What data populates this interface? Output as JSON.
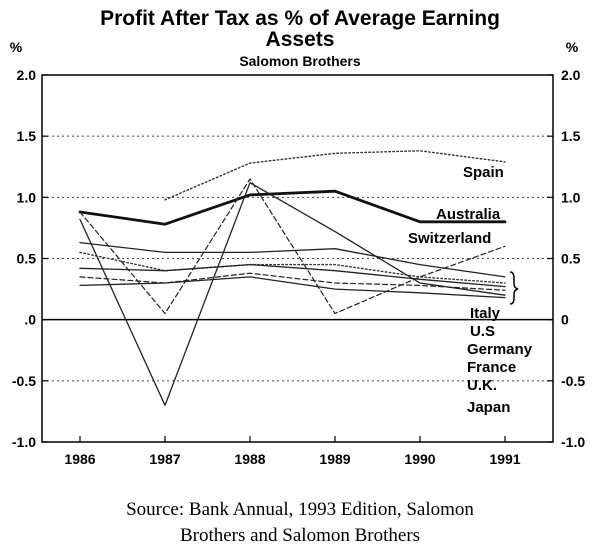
{
  "chart_data": {
    "type": "line",
    "title": "Profit After Tax as % of Average Earning Assets",
    "subtitle": "Salomon Brothers",
    "ylabel_left": "%",
    "ylabel_right": "%",
    "xlabel": "",
    "x": [
      "1986",
      "1987",
      "1988",
      "1989",
      "1990",
      "1991"
    ],
    "ylim": [
      -1.0,
      2.0
    ],
    "yticks": [
      {
        "value": 2.0,
        "label": "2.0"
      },
      {
        "value": 1.5,
        "label": "1.5"
      },
      {
        "value": 1.0,
        "label": "1.0"
      },
      {
        "value": 0.5,
        "label": "0.5"
      },
      {
        "value": 0.0,
        "label": ".0"
      },
      {
        "value": -0.5,
        "label": "-0.5"
      },
      {
        "value": -1.0,
        "label": "-1.0"
      }
    ],
    "yticks_right": [
      {
        "value": 2.0,
        "label": "2.0"
      },
      {
        "value": 1.5,
        "label": "1.5"
      },
      {
        "value": 1.0,
        "label": "1.0"
      },
      {
        "value": 0.5,
        "label": "0.5"
      },
      {
        "value": 0.0,
        "label": "0"
      },
      {
        "value": -0.5,
        "label": "-0.5"
      },
      {
        "value": -1.0,
        "label": "-1.0"
      }
    ],
    "grid": "dotted horizontal",
    "series": [
      {
        "name": "Spain",
        "style": "dotted",
        "values": [
          null,
          0.98,
          1.28,
          1.36,
          1.38,
          1.29
        ]
      },
      {
        "name": "Australia",
        "style": "solid-bold",
        "values": [
          0.88,
          0.78,
          1.02,
          1.05,
          0.8,
          0.8
        ]
      },
      {
        "name": "Switzerland",
        "style": "dashed",
        "values": [
          0.88,
          0.05,
          1.15,
          0.05,
          0.35,
          0.6
        ]
      },
      {
        "name": "Italy",
        "style": "solid",
        "values": [
          0.82,
          -0.7,
          1.12,
          0.72,
          0.3,
          0.2
        ]
      },
      {
        "name": "U.S",
        "style": "solid",
        "values": [
          0.63,
          0.55,
          0.55,
          0.58,
          0.45,
          0.35
        ]
      },
      {
        "name": "Germany",
        "style": "dotted",
        "values": [
          0.55,
          0.4,
          0.45,
          0.45,
          0.35,
          0.3
        ]
      },
      {
        "name": "France",
        "style": "solid",
        "values": [
          0.42,
          0.4,
          0.45,
          0.4,
          0.33,
          0.27
        ]
      },
      {
        "name": "U.K.",
        "style": "dashed",
        "values": [
          0.35,
          0.3,
          0.38,
          0.3,
          0.28,
          0.24
        ]
      },
      {
        "name": "Japan",
        "style": "solid",
        "values": [
          0.28,
          0.3,
          0.35,
          0.25,
          0.22,
          0.18
        ]
      }
    ],
    "source": [
      "Source: Bank Annual, 1993 Edition, Salomon",
      "Brothers and Salomon Brothers"
    ]
  }
}
